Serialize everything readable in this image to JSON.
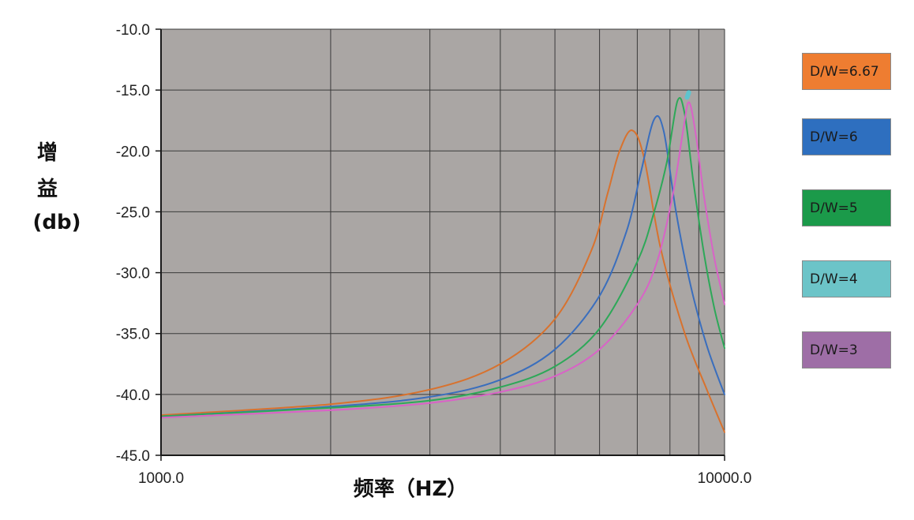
{
  "chart_data": {
    "type": "line",
    "title": "",
    "xlabel": "频率（HZ）",
    "ylabel_lines": [
      "增",
      "益",
      "(db)"
    ],
    "x_scale": "log",
    "xlim": [
      1000.0,
      10000.0
    ],
    "ylim": [
      -45.0,
      -10.0
    ],
    "x_tick_labels": [
      "1000.0",
      "10000.0"
    ],
    "x_gridlines": [
      1000,
      2000,
      3000,
      4000,
      5000,
      6000,
      7000,
      8000,
      9000,
      10000
    ],
    "y_ticks": [
      -10.0,
      -15.0,
      -20.0,
      -25.0,
      -30.0,
      -35.0,
      -40.0,
      -45.0
    ],
    "y_tick_labels": [
      "-10.0",
      "-15.0",
      "-20.0",
      "-25.0",
      "-30.0",
      "-35.0",
      "-40.0",
      "-45.0"
    ],
    "grid": true,
    "plot_background": "#aaa6a4",
    "grid_color": "#3a3a3a",
    "legend_placement": "right",
    "series": [
      {
        "name": "D/W=6.67",
        "color": "#d8722e",
        "legend_bg": "#ee7d31",
        "x": [
          1000,
          2000,
          3000,
          4000,
          5000,
          5800,
          6200,
          6500,
          6850,
          7200,
          7700,
          8500,
          9300,
          10000
        ],
        "y": [
          -41.7,
          -40.8,
          -39.6,
          -37.5,
          -33.8,
          -28.2,
          -23.5,
          -20.1,
          -18.3,
          -20.6,
          -28.0,
          -35.0,
          -39.6,
          -43.1
        ]
      },
      {
        "name": "D/W=6",
        "color": "#3a6ebd",
        "legend_bg": "#2e6fbf",
        "x": [
          1000,
          2000,
          3000,
          4000,
          5000,
          6000,
          6700,
          7100,
          7500,
          7800,
          8200,
          8700,
          9300,
          10000
        ],
        "y": [
          -41.8,
          -41.0,
          -40.2,
          -38.8,
          -36.3,
          -31.9,
          -26.6,
          -21.8,
          -17.4,
          -18.4,
          -25.0,
          -31.0,
          -36.0,
          -40.0
        ]
      },
      {
        "name": "D/W=5",
        "color": "#2da858",
        "legend_bg": "#1b9a4a",
        "x": [
          1000,
          2000,
          3000,
          4000,
          5000,
          6000,
          7000,
          7500,
          7900,
          8250,
          8500,
          8800,
          9200,
          9600,
          10000
        ],
        "y": [
          -41.8,
          -41.1,
          -40.5,
          -39.4,
          -37.7,
          -34.6,
          -29.1,
          -25.0,
          -20.9,
          -15.9,
          -17.0,
          -22.5,
          -28.5,
          -33.0,
          -36.2
        ]
      },
      {
        "name": "D/W=4",
        "color": "#5fc4ce",
        "legend_bg": "#6cc4c8",
        "x": [
          8580,
          8640
        ],
        "y": [
          -15.6,
          -15.2
        ]
      },
      {
        "name": "D/W=3",
        "color": "#d962c7",
        "legend_bg": "#9e6ea6",
        "x": [
          1000,
          2000,
          3000,
          4000,
          5000,
          6000,
          7000,
          7600,
          8100,
          8450,
          8650,
          8900,
          9200,
          9600,
          10000
        ],
        "y": [
          -41.9,
          -41.3,
          -40.7,
          -39.8,
          -38.5,
          -36.3,
          -32.6,
          -29.0,
          -23.5,
          -18.2,
          -16.0,
          -18.8,
          -23.8,
          -28.9,
          -32.6
        ]
      }
    ]
  }
}
